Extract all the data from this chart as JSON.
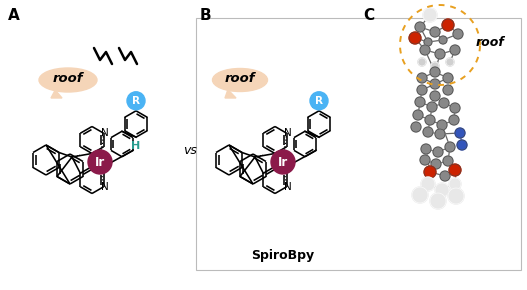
{
  "panel_labels": [
    "A",
    "B",
    "C"
  ],
  "roof_text": "roof",
  "vs_text": "vs",
  "spirobpy_text": "SpiroBpy",
  "bg_color": "#ffffff",
  "roof_bubble_color": "#f5d5b8",
  "roof_bubble_alpha": 1.0,
  "R_circle_color": "#4ab3f4",
  "Ir_circle_color": "#8b1a4a",
  "H_color": "#2a9d8f",
  "border_color": "#bbbbbb",
  "dotted_circle_color": "#e8a020",
  "mol_C": "#888888",
  "mol_O": "#cc2200",
  "mol_N": "#3355bb",
  "mol_H": "#cccccc"
}
